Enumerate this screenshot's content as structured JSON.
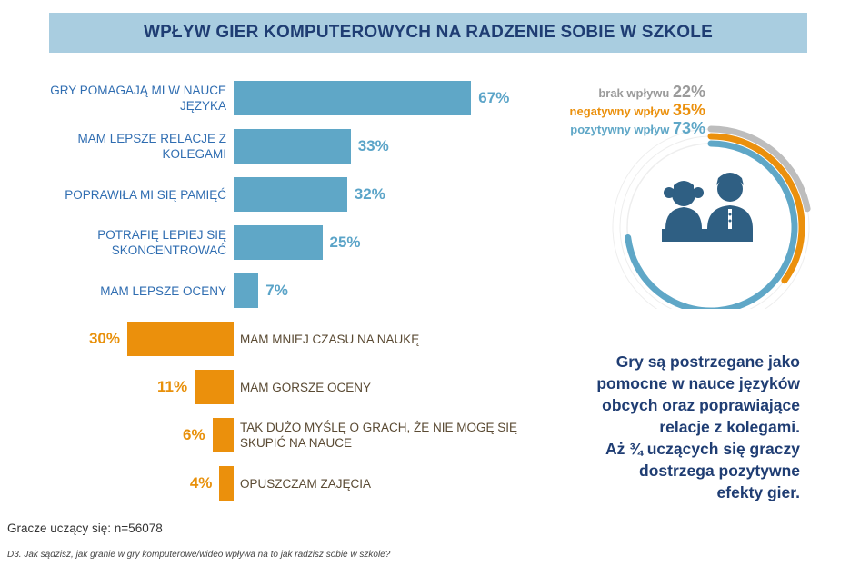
{
  "title": "WPŁYW GIER KOMPUTEROWYCH NA RADZENIE SOBIE W SZKOLE",
  "chart_data": [
    {
      "type": "bar",
      "orientation": "horizontal",
      "unit": "%",
      "positive_color": "#5fa7c7",
      "negative_color": "#eb900c",
      "items": [
        {
          "label": "GRY POMAGAJĄ MI W NAUCE\nJĘZYKA",
          "value": 67,
          "value_label": "67%",
          "type": "positive"
        },
        {
          "label": "MAM LEPSZE RELACJE Z\nKOLEGAMI",
          "value": 33,
          "value_label": "33%",
          "type": "positive"
        },
        {
          "label": "POPRAWIŁA MI SIĘ PAMIĘĆ",
          "value": 32,
          "value_label": "32%",
          "type": "positive"
        },
        {
          "label": "POTRAFIĘ LEPIEJ SIĘ\nSKONCENTROWAĆ",
          "value": 25,
          "value_label": "25%",
          "type": "positive"
        },
        {
          "label": "MAM LEPSZE OCENY",
          "value": 7,
          "value_label": "7%",
          "type": "positive"
        },
        {
          "label": "MAM MNIEJ CZASU NA NAUKĘ",
          "value": 30,
          "value_label": "30%",
          "type": "negative"
        },
        {
          "label": "MAM GORSZE OCENY",
          "value": 11,
          "value_label": "11%",
          "type": "negative"
        },
        {
          "label": "TAK DUŻO MYŚLĘ O GRACH, ŻE NIE MOGĘ SIĘ\nSKUPIĆ NA NAUCE",
          "value": 6,
          "value_label": "6%",
          "type": "negative"
        },
        {
          "label": "OPUSZCZAM ZAJĘCIA",
          "value": 4,
          "value_label": "4%",
          "type": "negative"
        }
      ]
    },
    {
      "type": "pie",
      "style": "concentric-arcs",
      "max": 100,
      "series": [
        {
          "name": "brak wpływu",
          "value": 22,
          "value_label": "22%",
          "color": "#bdbdbd"
        },
        {
          "name": "negatywny wpływ",
          "value": 35,
          "value_label": "35%",
          "color": "#eb900c"
        },
        {
          "name": "pozytywny wpływ",
          "value": 73,
          "value_label": "73%",
          "color": "#5fa7c7"
        }
      ],
      "icon": "students-icon"
    }
  ],
  "summary_lines": [
    "Gry są postrzegane jako",
    "pomocne w nauce języków",
    "obcych oraz poprawiające",
    "relacje z kolegami.",
    "Aż ¾ uczących się graczy",
    "dostrzega pozytywne",
    "efekty gier."
  ],
  "sample_note": "Gracze uczący się: n=56078",
  "question_note": "D3. Jak sądzisz, jak granie w gry komputerowe/wideo wpływa na to jak radzisz sobie w szkole?"
}
